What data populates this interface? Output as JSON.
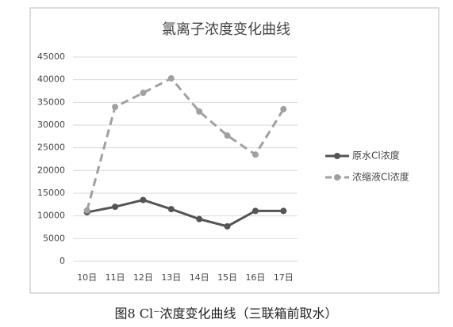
{
  "chart_data": {
    "type": "line",
    "title": "氯离子浓度变化曲线",
    "caption": "图8 Cl⁻浓度变化曲线（三联箱前取水）",
    "categories": [
      "10日",
      "11日",
      "12日",
      "13日",
      "14日",
      "15日",
      "16日",
      "17日"
    ],
    "series": [
      {
        "name": "原水Cl浓度",
        "color": "#555555",
        "dashed": false,
        "values": [
          10800,
          12000,
          13500,
          11500,
          9300,
          7700,
          11100,
          11100
        ]
      },
      {
        "name": "浓缩液Cl浓度",
        "color": "#a0a0a0",
        "dashed": true,
        "values": [
          11200,
          34000,
          37100,
          40300,
          33000,
          27700,
          23500,
          33500
        ]
      }
    ],
    "ylim": [
      0,
      45000
    ],
    "yticks": [
      0,
      5000,
      10000,
      15000,
      20000,
      25000,
      30000,
      35000,
      40000,
      45000
    ],
    "grid": true,
    "legend": "right"
  }
}
